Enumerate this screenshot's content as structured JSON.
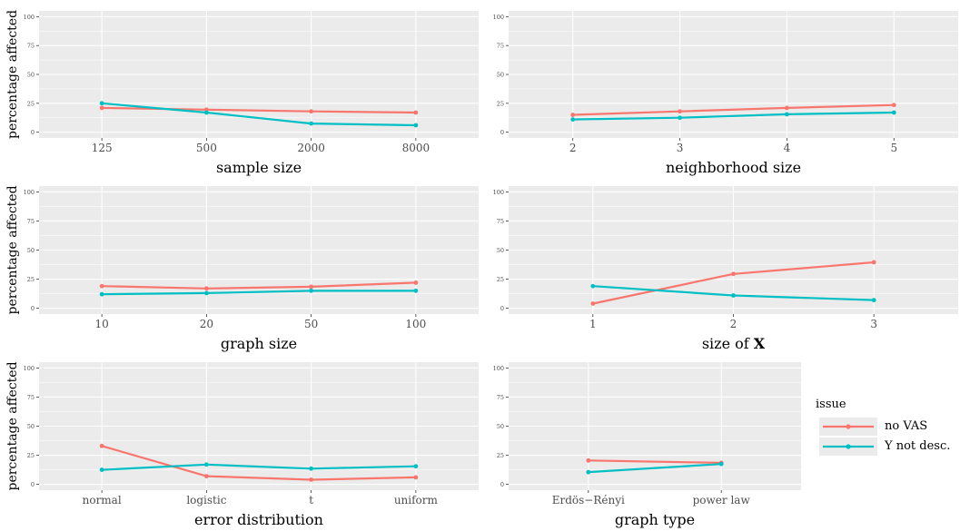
{
  "chart_data": [
    {
      "type": "line",
      "xlabel": "sample size",
      "ylabel": "percentage affected",
      "categories": [
        "125",
        "500",
        "2000",
        "8000"
      ],
      "ylim": [
        0,
        100
      ],
      "yticks": [
        "0",
        "25",
        "50",
        "75",
        "100"
      ],
      "series": [
        {
          "name": "no VAS",
          "values": [
            21,
            19.5,
            18,
            17
          ]
        },
        {
          "name": "Y not desc.",
          "values": [
            25,
            17,
            7.5,
            6
          ]
        }
      ]
    },
    {
      "type": "line",
      "xlabel": "neighborhood size",
      "ylabel": "",
      "categories": [
        "2",
        "3",
        "4",
        "5"
      ],
      "ylim": [
        0,
        100
      ],
      "yticks": [
        "0",
        "25",
        "50",
        "75",
        "100"
      ],
      "series": [
        {
          "name": "no VAS",
          "values": [
            15,
            18,
            21,
            23.5
          ]
        },
        {
          "name": "Y not desc.",
          "values": [
            11,
            12.5,
            15.5,
            17
          ]
        }
      ]
    },
    {
      "type": "line",
      "xlabel": "graph size",
      "ylabel": "percentage affected",
      "categories": [
        "10",
        "20",
        "50",
        "100"
      ],
      "ylim": [
        0,
        100
      ],
      "yticks": [
        "0",
        "25",
        "50",
        "75",
        "100"
      ],
      "series": [
        {
          "name": "no VAS",
          "values": [
            19,
            17,
            18.5,
            22
          ]
        },
        {
          "name": "Y not desc.",
          "values": [
            12,
            13,
            15,
            15
          ]
        }
      ]
    },
    {
      "type": "line",
      "xlabel": "size of X",
      "ylabel": "",
      "categories": [
        "1",
        "2",
        "3"
      ],
      "ylim": [
        0,
        100
      ],
      "yticks": [
        "0",
        "25",
        "50",
        "75",
        "100"
      ],
      "series": [
        {
          "name": "no VAS",
          "values": [
            4,
            29.5,
            39.5
          ]
        },
        {
          "name": "Y not desc.",
          "values": [
            19,
            11,
            7
          ]
        }
      ]
    },
    {
      "type": "line",
      "xlabel": "error distribution",
      "ylabel": "percentage affected",
      "categories": [
        "normal",
        "logistic",
        "t",
        "uniform"
      ],
      "ylim": [
        0,
        100
      ],
      "yticks": [
        "0",
        "25",
        "50",
        "75",
        "100"
      ],
      "series": [
        {
          "name": "no VAS",
          "values": [
            33,
            7,
            4,
            6
          ]
        },
        {
          "name": "Y not desc.",
          "values": [
            12.5,
            17,
            13.5,
            15.5
          ]
        }
      ]
    },
    {
      "type": "line",
      "xlabel": "graph type",
      "ylabel": "",
      "categories": [
        "Erdös−Rényi",
        "power law"
      ],
      "ylim": [
        0,
        100
      ],
      "yticks": [
        "0",
        "25",
        "50",
        "75",
        "100"
      ],
      "series": [
        {
          "name": "no VAS",
          "values": [
            20.5,
            18.5
          ]
        },
        {
          "name": "Y not desc.",
          "values": [
            10.5,
            17.5
          ]
        }
      ]
    }
  ],
  "legend": {
    "title": "issue",
    "placement": "right",
    "items": [
      {
        "label": "no VAS",
        "color": "#f8766d"
      },
      {
        "label": "Y not desc.",
        "color": "#00bfc4"
      }
    ]
  },
  "colors": {
    "panel": "#ebebeb",
    "grid": "#ffffff",
    "series": [
      "#f8766d",
      "#00bfc4"
    ]
  }
}
